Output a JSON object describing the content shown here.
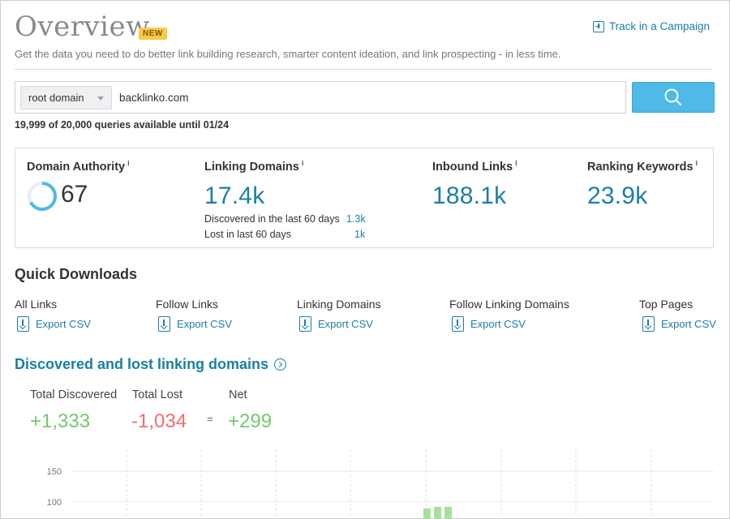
{
  "header": {
    "title": "Overview",
    "badge": "NEW",
    "track_label": "Track in a Campaign",
    "subtitle": "Get the data you need to do better link building research, smarter content ideation, and link prospecting - in less time."
  },
  "search": {
    "scope": "root domain",
    "value": "backlinko.com",
    "quota": "19,999 of 20,000 queries available until 01/24"
  },
  "metrics": {
    "domain_authority": {
      "label": "Domain Authority",
      "info": "i",
      "value": "67",
      "progress": 0.67
    },
    "linking_domains": {
      "label": "Linking Domains",
      "info": "i",
      "value": "17.4k",
      "discovered_label": "Discovered in the last 60 days",
      "discovered_value": "1.3k",
      "lost_label": "Lost in last 60 days",
      "lost_value": "1k"
    },
    "inbound_links": {
      "label": "Inbound Links",
      "info": "i",
      "value": "188.1k"
    },
    "ranking_keywords": {
      "label": "Ranking Keywords",
      "info": "i",
      "value": "23.9k"
    }
  },
  "downloads": {
    "title": "Quick Downloads",
    "items": [
      {
        "label": "All Links",
        "link": "Export CSV"
      },
      {
        "label": "Follow Links",
        "link": "Export CSV"
      },
      {
        "label": "Linking Domains",
        "link": "Export CSV"
      },
      {
        "label": "Follow Linking Domains",
        "link": "Export CSV"
      },
      {
        "label": "Top Pages",
        "link": "Export CSV"
      }
    ]
  },
  "discovered": {
    "title": "Discovered and lost linking domains",
    "total_discovered_label": "Total Discovered",
    "total_discovered": "+1,333",
    "total_lost_label": "Total Lost",
    "total_lost": "-1,034",
    "equals": "=",
    "net_label": "Net",
    "net": "+299"
  },
  "chart_data": {
    "type": "bar",
    "y_ticks": [
      "150",
      "100"
    ],
    "ylim": [
      0,
      150
    ],
    "grid": true
  },
  "colors": {
    "accent": "#1c7ea6",
    "search_button": "#4fb9e8",
    "positive": "#72c96b",
    "negative": "#ef6d6d",
    "badge": "#fbc94a"
  }
}
